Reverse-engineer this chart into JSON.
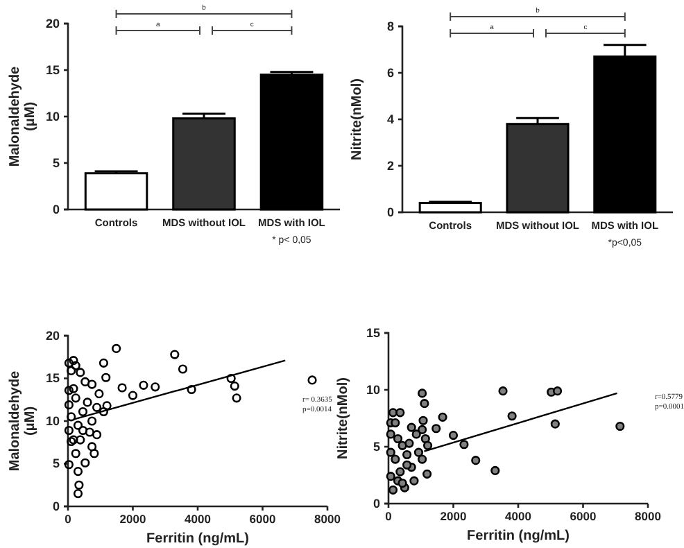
{
  "chart_data": [
    {
      "type": "bar",
      "ylabel": "Malonaldehyde\n(μM)",
      "categories": [
        "Controls",
        "MDS without IOL",
        "MDS with IOL"
      ],
      "values": [
        3.9,
        9.8,
        14.5
      ],
      "colors": [
        "#ffffff",
        "#333333",
        "#000000"
      ],
      "errors": [
        0.2,
        0.5,
        0.3
      ],
      "ylim": [
        0,
        20
      ],
      "yticks": [
        0,
        5,
        10,
        15,
        20
      ],
      "grid": false,
      "annotations": [
        "a",
        "b",
        "c",
        "* p< 0,05"
      ]
    },
    {
      "type": "bar",
      "ylabel": "Nitrite(nMol)",
      "categories": [
        "Controls",
        "MDS without IOL",
        "MDS with IOL"
      ],
      "values": [
        0.4,
        3.8,
        6.7
      ],
      "colors": [
        "#ffffff",
        "#333333",
        "#000000"
      ],
      "errors": [
        0.05,
        0.25,
        0.5
      ],
      "ylim": [
        0,
        8
      ],
      "yticks": [
        0,
        2,
        4,
        6,
        8
      ],
      "grid": false,
      "annotations": [
        "a",
        "b",
        "c",
        "*p<0,05"
      ]
    },
    {
      "type": "scatter",
      "xlabel": "Ferritin (ng/mL)",
      "ylabel": "Malonaldehyde\n(μM)",
      "xlim": [
        0,
        8000
      ],
      "xticks": [
        0,
        2000,
        4000,
        6000,
        8000
      ],
      "ylim": [
        0,
        20
      ],
      "yticks": [
        0,
        5,
        10,
        15,
        20
      ],
      "grid": false,
      "annotations": [
        "r= 0.3635",
        "p=0.0014"
      ],
      "series": [
        {
          "marker": "circle",
          "color": "#000000",
          "x": [
            170,
            30,
            240,
            100,
            380,
            530,
            170,
            30,
            740,
            1170,
            1100,
            1490,
            1670,
            2000,
            2330,
            2690,
            3290,
            3540,
            3810,
            5030,
            5140,
            5200,
            7530,
            30,
            100,
            30,
            100,
            30,
            240,
            380,
            310,
            460,
            600,
            740,
            890,
            810,
            530,
            310,
            340,
            310,
            890,
            1100,
            1200,
            960,
            670,
            740,
            240,
            460,
            170
          ],
          "values": [
            17.1,
            16.8,
            16.5,
            15.9,
            15.7,
            14.6,
            13.8,
            13.6,
            14.3,
            15.1,
            16.8,
            18.5,
            13.9,
            13.0,
            14.2,
            14.0,
            17.8,
            16.1,
            13.7,
            15.0,
            14.1,
            12.7,
            14.8,
            11.9,
            10.5,
            8.9,
            7.6,
            4.9,
            6.2,
            7.8,
            9.5,
            11.1,
            12.2,
            10.0,
            8.4,
            6.2,
            5.1,
            4.1,
            2.5,
            1.5,
            11.6,
            11.1,
            11.8,
            13.2,
            8.7,
            7.0,
            12.7,
            8.9,
            7.8
          ]
        },
        {
          "type": "line",
          "marker": "none",
          "color": "#000000",
          "x": [
            170,
            6700
          ],
          "values": [
            10.2,
            17.1
          ]
        }
      ]
    },
    {
      "type": "scatter",
      "xlabel": "Ferritin (ng/mL)",
      "ylabel": "Nitrite(nMol)",
      "xlim": [
        0,
        8000
      ],
      "xticks": [
        0,
        2000,
        4000,
        6000,
        8000
      ],
      "ylim": [
        0,
        15
      ],
      "yticks": [
        0,
        5,
        10,
        15
      ],
      "grid": false,
      "annotations": [
        "r=0.5779",
        "p=0.0001"
      ],
      "series": [
        {
          "marker": "circle",
          "color": "#808080",
          "x": [
            1040,
            1110,
            1070,
            1040,
            1140,
            1210,
            1190,
            1040,
            1470,
            1670,
            2000,
            2330,
            2690,
            3290,
            3530,
            3810,
            5020,
            5210,
            5140,
            7140,
            140,
            360,
            70,
            210,
            70,
            290,
            710,
            860,
            430,
            70,
            210,
            570,
            710,
            70,
            290,
            500,
            140,
            790,
            360,
            570,
            930,
            430,
            640
          ],
          "values": [
            9.7,
            8.8,
            7.3,
            6.5,
            5.7,
            5.1,
            2.6,
            3.9,
            6.6,
            7.6,
            6.0,
            5.2,
            3.8,
            2.9,
            9.9,
            7.7,
            9.8,
            9.9,
            7.0,
            6.8,
            8.0,
            8.0,
            7.1,
            7.1,
            6.1,
            5.7,
            6.7,
            6.1,
            5.1,
            4.5,
            3.9,
            4.3,
            3.2,
            2.4,
            2.0,
            1.4,
            1.2,
            2.0,
            2.8,
            3.4,
            4.5,
            1.8,
            5.3
          ]
        },
        {
          "type": "line",
          "marker": "none",
          "color": "#000000",
          "x": [
            1100,
            7050
          ],
          "values": [
            4.6,
            9.7
          ]
        }
      ]
    }
  ]
}
